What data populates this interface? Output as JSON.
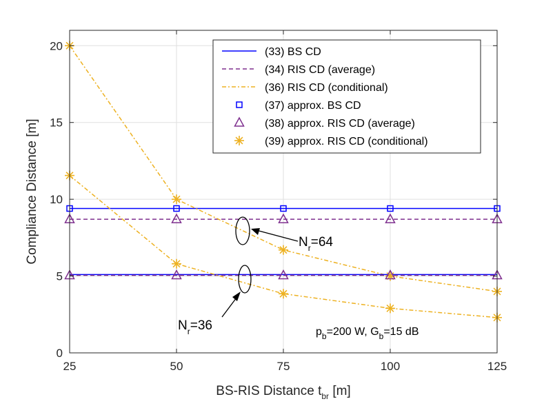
{
  "chart_data": {
    "type": "line",
    "xlabel_main": "BS-RIS Distance t",
    "xlabel_sub": "br",
    "xlabel_unit": " [m]",
    "ylabel": "Compliance Distance [m]",
    "xlim": [
      25,
      125
    ],
    "ylim": [
      0,
      21
    ],
    "x_ticks": [
      25,
      50,
      75,
      100,
      125
    ],
    "y_ticks": [
      0,
      5,
      10,
      15,
      20
    ],
    "grid": true,
    "legend_position": "top-right",
    "colors": {
      "bs": "#0000ff",
      "ris_avg": "#7e2f8e",
      "ris_cond": "#edb120"
    },
    "series": [
      {
        "id": "bs-cd-64",
        "group": "Nr=64",
        "legend": "(33) BS  CD",
        "style": "solid",
        "color_key": "bs",
        "x": [
          25,
          50,
          75,
          100,
          125
        ],
        "values": [
          9.4,
          9.4,
          9.4,
          9.4,
          9.4
        ]
      },
      {
        "id": "ris-avg-64",
        "group": "Nr=64",
        "legend": "(34) RIS CD (average)",
        "style": "dashed",
        "color_key": "ris_avg",
        "x": [
          25,
          50,
          75,
          100,
          125
        ],
        "values": [
          8.7,
          8.7,
          8.7,
          8.7,
          8.7
        ]
      },
      {
        "id": "ris-cond-64",
        "group": "Nr=64",
        "legend": "(36) RIS CD (conditional)",
        "style": "dashdot",
        "color_key": "ris_cond",
        "x": [
          25,
          50,
          75,
          100,
          125
        ],
        "values": [
          20.0,
          10.0,
          6.7,
          5.0,
          4.0
        ]
      },
      {
        "id": "bs-cd-36",
        "group": "Nr=36",
        "legend": "",
        "style": "solid",
        "color_key": "bs",
        "x": [
          25,
          50,
          75,
          100,
          125
        ],
        "values": [
          5.1,
          5.1,
          5.1,
          5.1,
          5.1
        ]
      },
      {
        "id": "ris-avg-36",
        "group": "Nr=36",
        "legend": "",
        "style": "dashed",
        "color_key": "ris_avg",
        "x": [
          25,
          50,
          75,
          100,
          125
        ],
        "values": [
          5.05,
          5.05,
          5.05,
          5.05,
          5.05
        ]
      },
      {
        "id": "ris-cond-36",
        "group": "Nr=36",
        "legend": "",
        "style": "dashdot",
        "color_key": "ris_cond",
        "x": [
          25,
          50,
          75,
          100,
          125
        ],
        "values": [
          11.55,
          5.8,
          3.85,
          2.9,
          2.3
        ]
      }
    ],
    "markers": [
      {
        "id": "approx-bs-64",
        "legend": "(37) approx. BS  CD",
        "shape": "square",
        "color_key": "bs",
        "x": [
          25,
          50,
          75,
          100,
          125
        ],
        "values": [
          9.4,
          9.4,
          9.4,
          9.4,
          9.4
        ]
      },
      {
        "id": "approx-ris-avg-64",
        "legend": "(38) approx. RIS CD (average)",
        "shape": "triangle",
        "color_key": "ris_avg",
        "x": [
          25,
          50,
          75,
          100,
          125
        ],
        "values": [
          8.7,
          8.7,
          8.7,
          8.7,
          8.7
        ]
      },
      {
        "id": "approx-ris-cond-64",
        "legend": "(39) approx. RIS CD (conditional)",
        "shape": "asterisk",
        "color_key": "ris_cond",
        "x": [
          25,
          50,
          75,
          100,
          125
        ],
        "values": [
          20.0,
          10.0,
          6.7,
          5.0,
          4.0
        ]
      },
      {
        "id": "approx-ris-avg-36",
        "legend": "",
        "shape": "triangle",
        "color_key": "ris_avg",
        "x": [
          25,
          50,
          75,
          100,
          125
        ],
        "values": [
          5.05,
          5.05,
          5.05,
          5.05,
          5.05
        ]
      },
      {
        "id": "approx-ris-cond-36",
        "legend": "",
        "shape": "asterisk",
        "color_key": "ris_cond",
        "x": [
          25,
          50,
          75,
          100,
          125
        ],
        "values": [
          11.55,
          5.8,
          3.85,
          2.9,
          2.3
        ]
      }
    ],
    "annotations": {
      "nr64": {
        "main": "N",
        "sub": "r",
        "rest": "=64"
      },
      "nr36": {
        "main": "N",
        "sub": "r",
        "rest": "=36"
      },
      "params": {
        "p": "p",
        "p_sub": "b",
        "p_rest": "=200 W, G",
        "g_sub": "b",
        "g_rest": "=15 dB"
      }
    }
  }
}
